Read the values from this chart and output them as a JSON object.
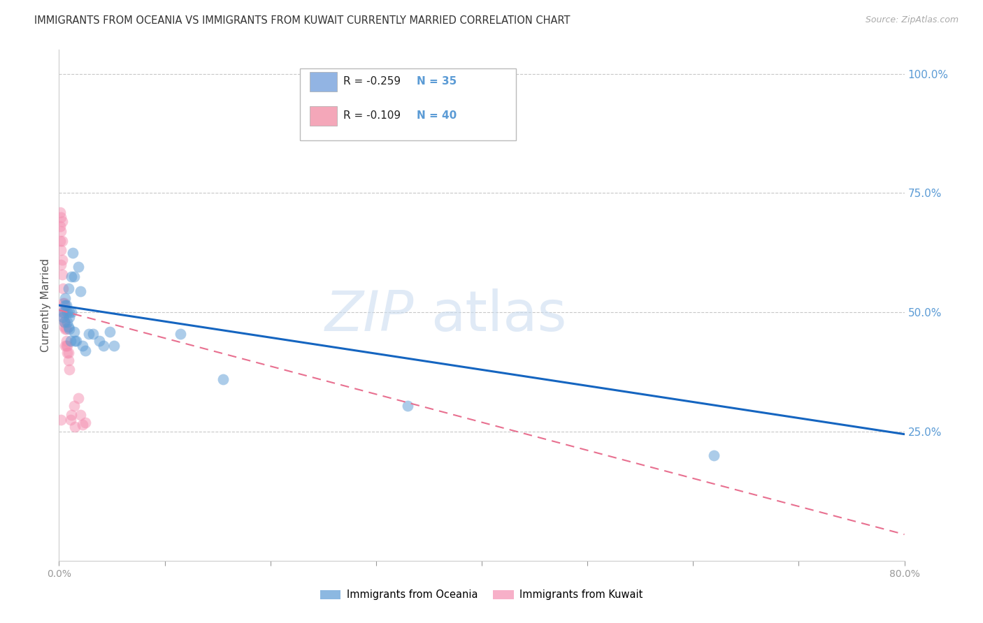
{
  "title": "IMMIGRANTS FROM OCEANIA VS IMMIGRANTS FROM KUWAIT CURRENTLY MARRIED CORRELATION CHART",
  "source": "Source: ZipAtlas.com",
  "ylabel": "Currently Married",
  "right_yticks": [
    0.0,
    0.25,
    0.5,
    0.75,
    1.0
  ],
  "right_yticklabels": [
    "",
    "25.0%",
    "50.0%",
    "75.0%",
    "100.0%"
  ],
  "legend_entries": [
    {
      "label_r": "R = -0.259",
      "label_n": "N = 35",
      "color": "#92b4e3"
    },
    {
      "label_r": "R = -0.109",
      "label_n": "N = 40",
      "color": "#f4a7b9"
    }
  ],
  "watermark_zip": "ZIP",
  "watermark_atlas": "atlas",
  "xlim": [
    0.0,
    0.8
  ],
  "ylim": [
    -0.02,
    1.05
  ],
  "blue_scatter_x": [
    0.004,
    0.004,
    0.005,
    0.006,
    0.006,
    0.007,
    0.008,
    0.008,
    0.009,
    0.009,
    0.01,
    0.01,
    0.01,
    0.011,
    0.012,
    0.012,
    0.013,
    0.014,
    0.014,
    0.015,
    0.016,
    0.018,
    0.02,
    0.022,
    0.025,
    0.028,
    0.032,
    0.038,
    0.042,
    0.048,
    0.052,
    0.115,
    0.155,
    0.62,
    0.33
  ],
  "blue_scatter_y": [
    0.5,
    0.49,
    0.48,
    0.53,
    0.515,
    0.515,
    0.5,
    0.48,
    0.47,
    0.55,
    0.5,
    0.49,
    0.465,
    0.44,
    0.575,
    0.5,
    0.625,
    0.575,
    0.46,
    0.44,
    0.44,
    0.595,
    0.545,
    0.43,
    0.42,
    0.455,
    0.455,
    0.44,
    0.43,
    0.46,
    0.43,
    0.455,
    0.36,
    0.2,
    0.305
  ],
  "pink_scatter_x": [
    0.001,
    0.001,
    0.001,
    0.002,
    0.002,
    0.002,
    0.002,
    0.003,
    0.003,
    0.003,
    0.003,
    0.003,
    0.004,
    0.004,
    0.004,
    0.005,
    0.005,
    0.005,
    0.005,
    0.006,
    0.006,
    0.006,
    0.006,
    0.007,
    0.007,
    0.007,
    0.008,
    0.008,
    0.009,
    0.009,
    0.01,
    0.011,
    0.012,
    0.014,
    0.015,
    0.018,
    0.02,
    0.022,
    0.025,
    0.002
  ],
  "pink_scatter_y": [
    0.71,
    0.68,
    0.65,
    0.7,
    0.67,
    0.63,
    0.6,
    0.69,
    0.65,
    0.61,
    0.58,
    0.5,
    0.55,
    0.52,
    0.49,
    0.52,
    0.5,
    0.48,
    0.47,
    0.5,
    0.48,
    0.465,
    0.43,
    0.465,
    0.44,
    0.43,
    0.43,
    0.415,
    0.415,
    0.4,
    0.38,
    0.275,
    0.285,
    0.305,
    0.26,
    0.32,
    0.285,
    0.265,
    0.27,
    0.275
  ],
  "blue_line_x": [
    0.0,
    0.8
  ],
  "blue_line_y": [
    0.515,
    0.245
  ],
  "pink_line_x": [
    0.0,
    0.8
  ],
  "pink_line_y": [
    0.505,
    0.035
  ],
  "blue_color": "#5b9bd5",
  "pink_color": "#f48fb1",
  "blue_line_color": "#1565c0",
  "pink_line_color": "#e87090",
  "title_color": "#333333",
  "right_axis_color": "#5b9bd5",
  "grid_color": "#c8c8c8",
  "xtick_labels": [
    "0.0%",
    "",
    "",
    "",
    "",
    "",
    "",
    "",
    "80.0%"
  ],
  "xtick_positions": [
    0.0,
    0.1,
    0.2,
    0.3,
    0.4,
    0.5,
    0.6,
    0.7,
    0.8
  ],
  "bottom_legend": [
    "Immigrants from Oceania",
    "Immigrants from Kuwait"
  ]
}
